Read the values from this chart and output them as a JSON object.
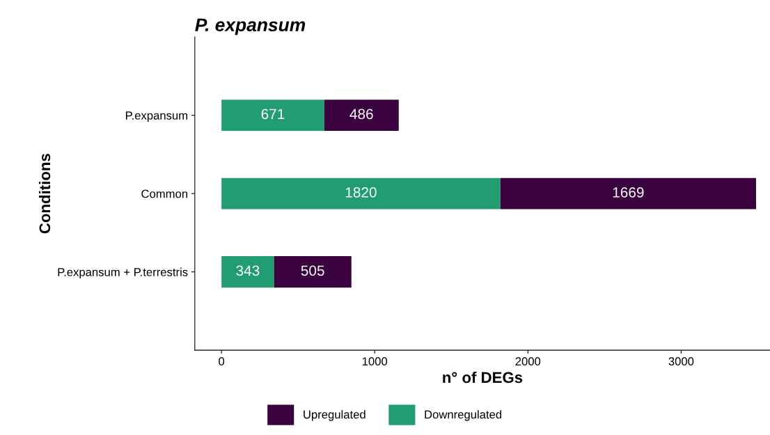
{
  "chart_data": {
    "type": "bar",
    "orientation": "horizontal",
    "stacked": true,
    "title": "P. expansum",
    "xlabel": "n° of DEGs",
    "ylabel": "Conditions",
    "categories": [
      "P.expansum",
      "Common",
      "P.expansum + P.terrestris"
    ],
    "series": [
      {
        "name": "Downregulated",
        "color": "#229d72",
        "values": [
          671,
          1820,
          343
        ]
      },
      {
        "name": "Upregulated",
        "color": "#3a0340",
        "values": [
          486,
          1669,
          505
        ]
      }
    ],
    "xlim": [
      -174,
      3580
    ],
    "xticks": [
      0,
      1000,
      2000,
      3000
    ],
    "data_labels": true,
    "grid": false,
    "legend": "bottom"
  }
}
